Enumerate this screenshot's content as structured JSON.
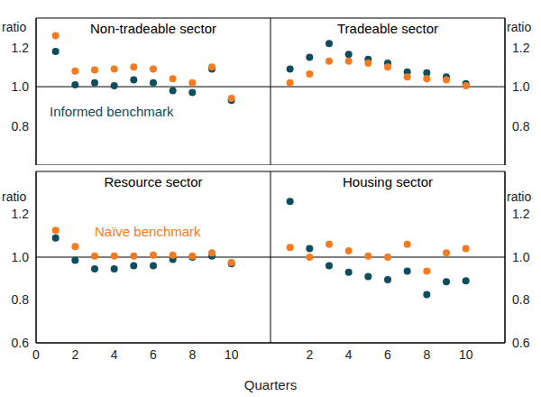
{
  "x_label": "Quarters",
  "chart_data": [
    {
      "type": "scatter",
      "title": "Non-tradeable sector",
      "y_label": "ratio",
      "annotation": "Informed benchmark",
      "x": [
        1,
        2,
        3,
        4,
        5,
        6,
        7,
        8,
        9,
        10
      ],
      "series": [
        {
          "name": "Informed benchmark",
          "color": "#0e4d5c",
          "values": [
            1.18,
            1.01,
            1.02,
            1.005,
            1.035,
            1.02,
            0.98,
            0.97,
            1.09,
            0.93
          ]
        },
        {
          "name": "Naïve benchmark",
          "color": "#f47b20",
          "values": [
            1.26,
            1.08,
            1.085,
            1.09,
            1.1,
            1.09,
            1.04,
            1.02,
            1.1,
            0.94
          ]
        }
      ],
      "xlim": [
        0,
        12
      ],
      "ylim": [
        0.6,
        1.35
      ],
      "yticks": [
        0.8,
        {
          "value": 1,
          "label": "1.0"
        },
        1.2
      ],
      "hline": 1,
      "tick_labels": "y"
    },
    {
      "type": "scatter",
      "title": "Tradeable sector",
      "y_label": "ratio",
      "x": [
        1,
        2,
        3,
        4,
        5,
        6,
        7,
        8,
        9,
        10
      ],
      "series": [
        {
          "name": "Informed benchmark",
          "color": "#0e4d5c",
          "values": [
            1.09,
            1.15,
            1.22,
            1.165,
            1.14,
            1.12,
            1.075,
            1.07,
            1.05,
            1.015
          ]
        },
        {
          "name": "Naïve benchmark",
          "color": "#f47b20",
          "values": [
            1.02,
            1.065,
            1.13,
            1.13,
            1.12,
            1.1,
            1.05,
            1.04,
            1.035,
            1.005
          ]
        }
      ],
      "xlim": [
        0,
        12
      ],
      "ylim": [
        0.6,
        1.35
      ],
      "yticks": [
        0.8,
        {
          "value": 1,
          "label": "1.0"
        },
        1.2
      ],
      "hline": 1,
      "tick_labels": "y"
    },
    {
      "type": "scatter",
      "title": "Resource sector",
      "y_label": "ratio",
      "annotation": "Naïve benchmark",
      "x": [
        1,
        2,
        3,
        4,
        5,
        6,
        7,
        8,
        9,
        10
      ],
      "series": [
        {
          "name": "Informed benchmark",
          "color": "#0e4d5c",
          "values": [
            1.09,
            0.985,
            0.945,
            0.945,
            0.96,
            0.96,
            0.99,
            1.0,
            1.005,
            0.97
          ]
        },
        {
          "name": "Naïve benchmark",
          "color": "#f47b20",
          "values": [
            1.125,
            1.05,
            1.005,
            1.005,
            1.005,
            1.01,
            1.01,
            1.005,
            1.02,
            0.975
          ]
        }
      ],
      "xlim": [
        0,
        12
      ],
      "ylim": [
        0.6,
        1.4
      ],
      "xticks": [
        0,
        2,
        4,
        6,
        8,
        10
      ],
      "yticks": [
        0.6,
        0.8,
        {
          "value": 1,
          "label": "1.0"
        },
        1.2
      ],
      "hline": 1
    },
    {
      "type": "scatter",
      "title": "Housing sector",
      "y_label": "ratio",
      "x": [
        1,
        2,
        3,
        4,
        5,
        6,
        7,
        8,
        9,
        10
      ],
      "series": [
        {
          "name": "Informed benchmark",
          "color": "#0e4d5c",
          "values": [
            1.26,
            1.04,
            0.96,
            0.93,
            0.91,
            0.895,
            0.935,
            0.825,
            0.885,
            0.89
          ]
        },
        {
          "name": "Naïve benchmark",
          "color": "#f47b20",
          "values": [
            1.045,
            1.0,
            1.06,
            1.03,
            1.005,
            1.0,
            1.06,
            0.935,
            1.02,
            1.04
          ]
        }
      ],
      "xlim": [
        0,
        12
      ],
      "ylim": [
        0.6,
        1.4
      ],
      "xticks": [
        2,
        4,
        6,
        8,
        10
      ],
      "yticks": [
        0.6,
        0.8,
        {
          "value": 1,
          "label": "1.0"
        },
        1.2
      ],
      "hline": 1
    }
  ]
}
